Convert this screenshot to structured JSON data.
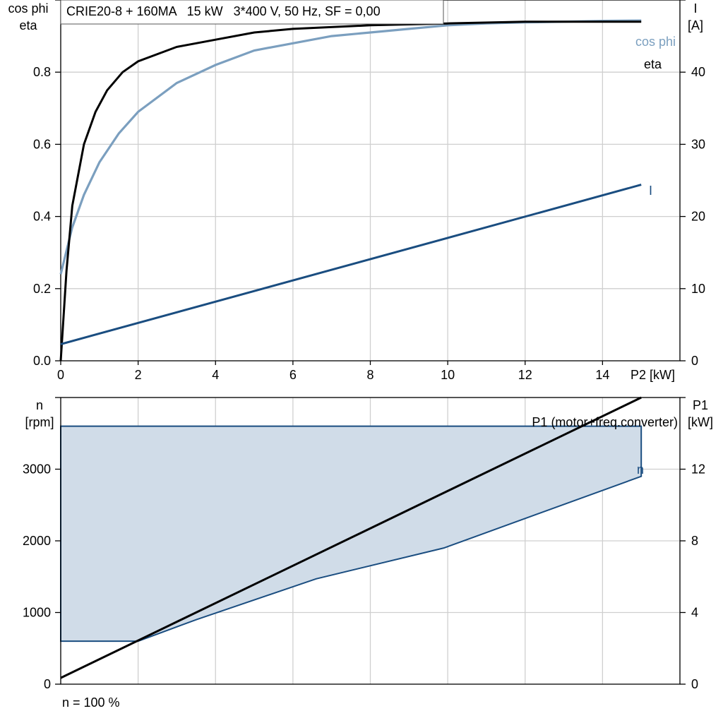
{
  "colors": {
    "cos_phi": "#7b9fbf",
    "eta": "#000000",
    "current": "#1a4d80",
    "speed_band_fill": "#d0dce8",
    "speed_band_line": "#1a4d80",
    "p1": "#000000",
    "grid": "#cfcfcf"
  },
  "chart_data": [
    {
      "type": "line",
      "title": "CRIE20-8 + 160MA   15 kW   3*400 V, 50 Hz, SF = 0,00",
      "xlabel": "P2 [kW]",
      "ylabel_left": [
        "cos phi",
        "eta"
      ],
      "ylabel_right": [
        "I",
        "[A]"
      ],
      "xlim": [
        0,
        16
      ],
      "ylim_left": [
        0,
        1
      ],
      "ylim_right": [
        0,
        50
      ],
      "x_ticks": [
        0,
        2,
        4,
        6,
        8,
        10,
        12,
        14
      ],
      "x_tick_labels": [
        "0",
        "2",
        "4",
        "6",
        "8",
        "10",
        "12",
        "14"
      ],
      "y_left_ticks": [
        0,
        0.2,
        0.4,
        0.6,
        0.8
      ],
      "y_left_tick_labels": [
        "0.0",
        "0.2",
        "0.4",
        "0.6",
        "0.8"
      ],
      "y_right_ticks": [
        0,
        10,
        20,
        30,
        40
      ],
      "y_right_tick_labels": [
        "0",
        "10",
        "20",
        "30",
        "40"
      ],
      "grid": true,
      "series": [
        {
          "name": "cos phi",
          "axis": "left",
          "x": [
            0,
            0.3,
            0.6,
            1,
            1.5,
            2,
            3,
            4,
            5,
            6,
            7,
            8,
            9,
            10,
            11,
            12,
            13,
            14,
            15
          ],
          "y": [
            0.24,
            0.37,
            0.46,
            0.55,
            0.63,
            0.69,
            0.77,
            0.82,
            0.86,
            0.88,
            0.9,
            0.91,
            0.92,
            0.93,
            0.935,
            0.938,
            0.94,
            0.942,
            0.943
          ]
        },
        {
          "name": "eta",
          "axis": "left",
          "x": [
            0,
            0.15,
            0.3,
            0.6,
            0.9,
            1.2,
            1.6,
            2,
            3,
            4,
            5,
            6,
            8,
            10,
            12,
            14,
            15
          ],
          "y": [
            0,
            0.25,
            0.43,
            0.6,
            0.69,
            0.75,
            0.8,
            0.83,
            0.87,
            0.89,
            0.91,
            0.92,
            0.93,
            0.935,
            0.94,
            0.94,
            0.94
          ]
        },
        {
          "name": "I",
          "axis": "right",
          "x": [
            0,
            15
          ],
          "y": [
            2.3,
            24.4
          ]
        }
      ]
    },
    {
      "type": "area",
      "xlim": [
        0,
        16
      ],
      "ylabel_left": [
        "n",
        "[rpm]"
      ],
      "ylabel_right": [
        "P1",
        "[kW]"
      ],
      "ylim_left": [
        0,
        4000
      ],
      "ylim_right": [
        0,
        16
      ],
      "y_left_ticks": [
        0,
        1000,
        2000,
        3000
      ],
      "y_left_tick_labels": [
        "0",
        "1000",
        "2000",
        "3000"
      ],
      "y_right_ticks": [
        0,
        4,
        8,
        12
      ],
      "y_right_tick_labels": [
        "0",
        "4",
        "8",
        "12"
      ],
      "grid": true,
      "footer": "n = 100 %",
      "series": [
        {
          "name": "n",
          "axis": "left",
          "upper_x": [
            0,
            15
          ],
          "upper_y": [
            3600,
            3600
          ],
          "lower_x": [
            0,
            2,
            3.5,
            6.6,
            9.9,
            15
          ],
          "lower_y": [
            600,
            600,
            900,
            1470,
            1900,
            2900
          ]
        },
        {
          "name": "P1 (motor+freq.converter)",
          "axis": "right",
          "x": [
            0,
            15
          ],
          "y": [
            0.35,
            16
          ]
        }
      ]
    }
  ]
}
